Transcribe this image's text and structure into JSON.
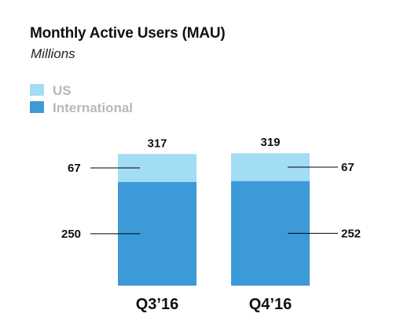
{
  "title": "Monthly Active Users (MAU)",
  "subtitle": "Millions",
  "colors": {
    "US": "#a3dcf5",
    "International": "#3d9ad8",
    "leader": "#000000"
  },
  "chart_data": {
    "type": "bar",
    "stacked": true,
    "title": "Monthly Active Users (MAU)",
    "subtitle": "Millions",
    "categories": [
      "Q3’16",
      "Q4’16"
    ],
    "series": [
      {
        "name": "International",
        "values": [
          250,
          252
        ],
        "color": "#3d9ad8"
      },
      {
        "name": "US",
        "values": [
          67,
          67
        ],
        "color": "#a3dcf5"
      }
    ],
    "totals": [
      317,
      319
    ],
    "legend": [
      "US",
      "International"
    ],
    "legend_position": "top-left",
    "grid": false
  }
}
